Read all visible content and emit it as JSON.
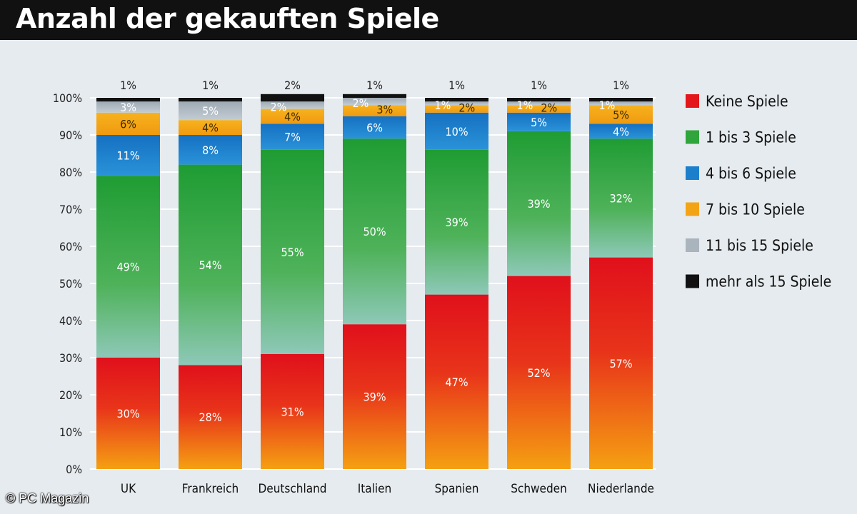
{
  "header": {
    "title": "Anzahl der gekauften Spiele"
  },
  "footer": {
    "copyright": "© PC Magazin"
  },
  "chart_data": {
    "type": "bar",
    "stacked": true,
    "title": "Anzahl der gekauften Spiele",
    "xlabel": "",
    "ylabel": "",
    "ylim": [
      0,
      100
    ],
    "y_ticks": [
      "0%",
      "10%",
      "20%",
      "30%",
      "40%",
      "50%",
      "60%",
      "70%",
      "80%",
      "90%",
      "100%"
    ],
    "categories": [
      "UK",
      "Frankreich",
      "Deutschland",
      "Italien",
      "Spanien",
      "Schweden",
      "Niederlande"
    ],
    "series": [
      {
        "name": "Keine Spiele",
        "color": "#e3161b",
        "values": [
          30,
          28,
          31,
          39,
          47,
          52,
          57
        ],
        "labels": [
          "30%",
          "28%",
          "31%",
          "39%",
          "47%",
          "52%",
          "57%"
        ]
      },
      {
        "name": "1 bis 3 Spiele",
        "color": "#2fa53c",
        "values": [
          49,
          54,
          55,
          50,
          39,
          39,
          32
        ],
        "labels": [
          "49%",
          "54%",
          "55%",
          "50%",
          "39%",
          "39%",
          "32%"
        ]
      },
      {
        "name": "4 bis 6 Spiele",
        "color": "#1c7fcc",
        "values": [
          11,
          8,
          7,
          6,
          10,
          5,
          4
        ],
        "labels": [
          "11%",
          "8%",
          "7%",
          "6%",
          "10%",
          "5%",
          "4%"
        ]
      },
      {
        "name": "7 bis 10 Spiele",
        "color": "#f3a416",
        "values": [
          6,
          4,
          4,
          3,
          2,
          2,
          5
        ],
        "labels": [
          "6%",
          "4%",
          "4%",
          "3%",
          "2%",
          "2%",
          "5%"
        ]
      },
      {
        "name": "11 bis 15 Spiele",
        "color": "#a9b4bd",
        "values": [
          3,
          5,
          2,
          2,
          1,
          1,
          1
        ],
        "labels": [
          "3%",
          "5%",
          "2%",
          "2%",
          "1%",
          "1%",
          "1%"
        ]
      },
      {
        "name": "mehr als 15 Spiele",
        "color": "#111111",
        "values": [
          1,
          1,
          2,
          1,
          1,
          1,
          1
        ],
        "labels": [
          "1%",
          "1%",
          "2%",
          "1%",
          "1%",
          "1%",
          "1%"
        ]
      }
    ],
    "legend_position": "right",
    "grid": true
  }
}
